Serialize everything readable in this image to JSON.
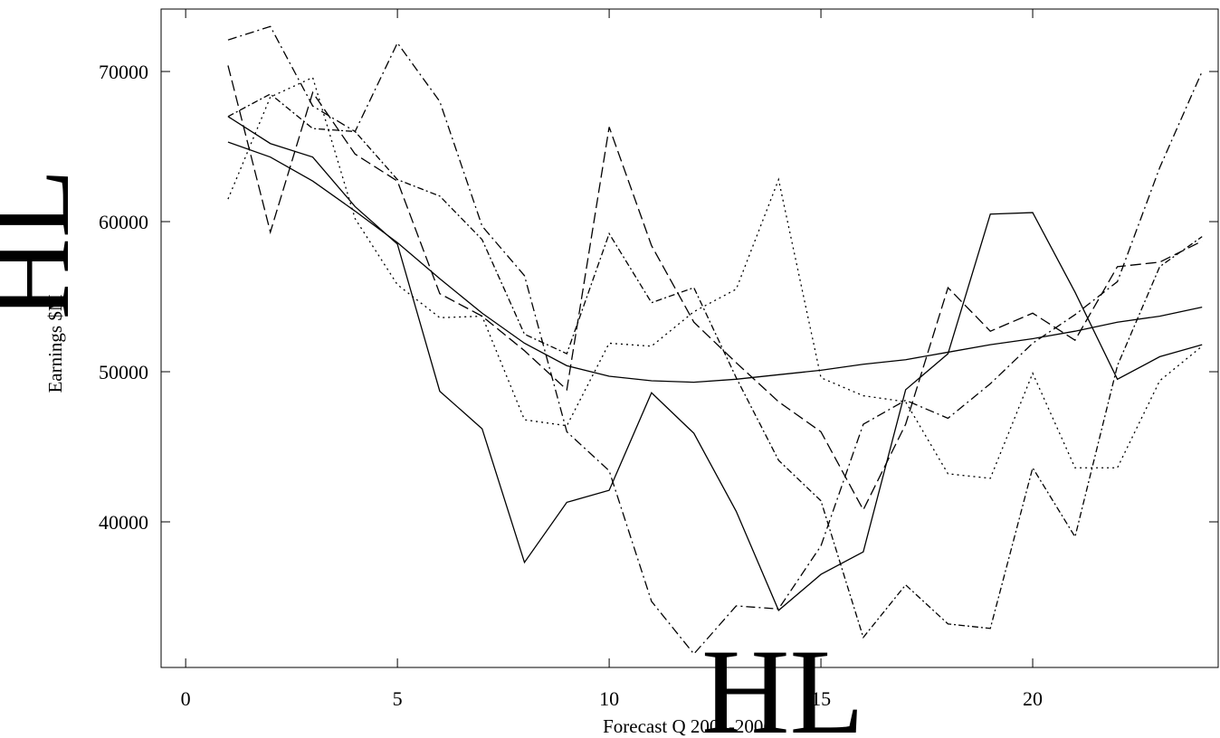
{
  "chart_data": {
    "type": "line",
    "xlabel": "Forecast Q 2001-2006",
    "ylabel": "Earnings $M",
    "xlabel_glyphs": "HL",
    "ylabel_glyphs": "HL",
    "x": [
      1,
      2,
      3,
      4,
      5,
      6,
      7,
      8,
      9,
      10,
      11,
      12,
      13,
      14,
      15,
      16,
      17,
      18,
      19,
      20,
      21,
      22,
      23,
      24
    ],
    "series": [
      {
        "color": "#000000",
        "dash": "none",
        "values": [
          65300,
          64300,
          62700,
          60700,
          58600,
          56200,
          53900,
          51900,
          50400,
          49700,
          49400,
          49300,
          49500,
          49800,
          50100,
          50500,
          50800,
          51300,
          51800,
          52200,
          52700,
          53300,
          53700,
          54300
        ]
      },
      {
        "color": "#000000",
        "dash": "none",
        "values": [
          67000,
          65200,
          64300,
          61000,
          58500,
          48700,
          46200,
          37300,
          41300,
          42100,
          48600,
          45900,
          40700,
          34100,
          36500,
          38000,
          48800,
          51200,
          60500,
          60600,
          55300,
          49500,
          51000,
          51800
        ]
      },
      {
        "color": "#000000",
        "dash": "12,5",
        "values": [
          70400,
          59300,
          68600,
          64500,
          62700,
          55200,
          53700,
          51400,
          48800,
          66300,
          58400,
          53300,
          50600,
          48000,
          46000,
          40800,
          46500,
          55600,
          52700,
          53900,
          52100,
          57000,
          57300,
          58700
        ]
      },
      {
        "color": "#000000",
        "dash": "10,4,2,4",
        "values": [
          72100,
          73000,
          67700,
          66000,
          71900,
          68000,
          59700,
          56400,
          46000,
          43400,
          34700,
          31200,
          34400,
          34200,
          38400,
          46500,
          48100,
          46900,
          49200,
          51900,
          53800,
          56000,
          63600,
          70000
        ]
      },
      {
        "color": "#000000",
        "dash": "2,4",
        "values": [
          61500,
          68300,
          69600,
          60200,
          55800,
          53600,
          53700,
          46800,
          46400,
          51900,
          51700,
          54000,
          55500,
          62800,
          49600,
          48400,
          48000,
          43200,
          42900,
          49900,
          43600,
          43600,
          49400,
          51700
        ]
      },
      {
        "color": "#000000",
        "dash": "7,3,2,3",
        "values": [
          67000,
          68500,
          66200,
          66000,
          62800,
          61700,
          58800,
          52500,
          51200,
          59200,
          54600,
          55600,
          49600,
          44100,
          41400,
          32300,
          35800,
          33200,
          32900,
          43600,
          39000,
          50400,
          57000,
          59000
        ]
      }
    ],
    "xlim": [
      -0.58,
      24.38
    ],
    "xticks": [
      0,
      5,
      10,
      15,
      20
    ],
    "ylim": [
      30300,
      74160
    ],
    "yticks": [
      40000,
      50000,
      60000,
      70000
    ],
    "grid": false
  }
}
